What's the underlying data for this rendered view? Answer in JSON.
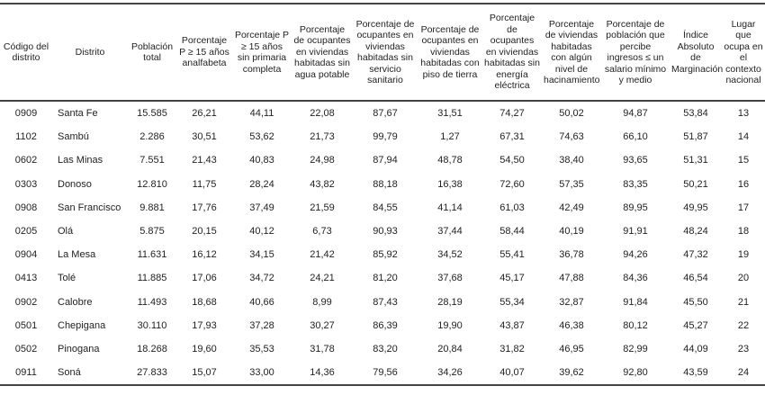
{
  "table": {
    "headers": [
      "Código del distrito",
      "Distrito",
      "Población total",
      "Porcentaje P ≥ 15 años analfabeta",
      "Porcentaje P ≥ 15 años sin primaria completa",
      "Porcentaje de ocupantes en viviendas habitadas sin agua potable",
      "Porcentaje de ocupantes en viviendas habitadas sin servicio sanitario",
      "Porcentaje de ocupantes en viviendas habitadas con piso de tierra",
      "Porcentaje de ocupantes en viviendas habitadas sin energía eléctrica",
      "Porcentaje de viviendas habitadas con algún nivel de hacinamiento",
      "Porcentaje de población que percibe ingresos ≤ un salario mínimo y medio",
      "Índice Absoluto de Marginación",
      "Lugar que ocupa en el contexto nacional"
    ],
    "rows": [
      [
        "0909",
        "Santa Fe",
        "15.585",
        "26,21",
        "44,11",
        "22,08",
        "87,67",
        "31,51",
        "74,27",
        "50,02",
        "94,87",
        "53,84",
        "13"
      ],
      [
        "1102",
        "Sambú",
        "2.286",
        "30,51",
        "53,62",
        "21,73",
        "99,79",
        "1,27",
        "67,31",
        "74,63",
        "66,10",
        "51,87",
        "14"
      ],
      [
        "0602",
        "Las Minas",
        "7.551",
        "21,43",
        "40,83",
        "24,98",
        "87,94",
        "48,78",
        "54,50",
        "38,40",
        "93,65",
        "51,31",
        "15"
      ],
      [
        "0303",
        "Donoso",
        "12.810",
        "11,75",
        "28,24",
        "43,82",
        "88,18",
        "16,38",
        "72,60",
        "57,35",
        "83,35",
        "50,21",
        "16"
      ],
      [
        "0908",
        "San Francisco",
        "9.881",
        "17,76",
        "37,49",
        "21,59",
        "84,55",
        "41,14",
        "61,03",
        "42,49",
        "89,95",
        "49,95",
        "17"
      ],
      [
        "0205",
        "Olá",
        "5.875",
        "20,15",
        "40,12",
        "6,73",
        "90,93",
        "37,44",
        "58,44",
        "40,19",
        "91,91",
        "48,24",
        "18"
      ],
      [
        "0904",
        "La Mesa",
        "11.631",
        "16,12",
        "34,15",
        "21,42",
        "85,92",
        "34,52",
        "55,41",
        "36,78",
        "94,26",
        "47,32",
        "19"
      ],
      [
        "0413",
        "Tolé",
        "11.885",
        "17,06",
        "34,72",
        "24,21",
        "81,20",
        "37,68",
        "45,17",
        "47,88",
        "84,36",
        "46,54",
        "20"
      ],
      [
        "0902",
        "Calobre",
        "11.493",
        "18,68",
        "40,66",
        "8,99",
        "87,43",
        "28,19",
        "55,34",
        "32,87",
        "91,84",
        "45,50",
        "21"
      ],
      [
        "0501",
        "Chepigana",
        "30.110",
        "17,93",
        "37,28",
        "30,27",
        "86,39",
        "19,90",
        "43,87",
        "46,38",
        "80,12",
        "45,27",
        "22"
      ],
      [
        "0502",
        "Pinogana",
        "18.268",
        "19,60",
        "35,53",
        "31,78",
        "83,20",
        "20,84",
        "31,82",
        "46,95",
        "82,99",
        "44,09",
        "23"
      ],
      [
        "0911",
        "Soná",
        "27.833",
        "15,07",
        "33,00",
        "14,36",
        "79,56",
        "34,26",
        "40,07",
        "39,62",
        "92,80",
        "43,59",
        "24"
      ]
    ]
  }
}
